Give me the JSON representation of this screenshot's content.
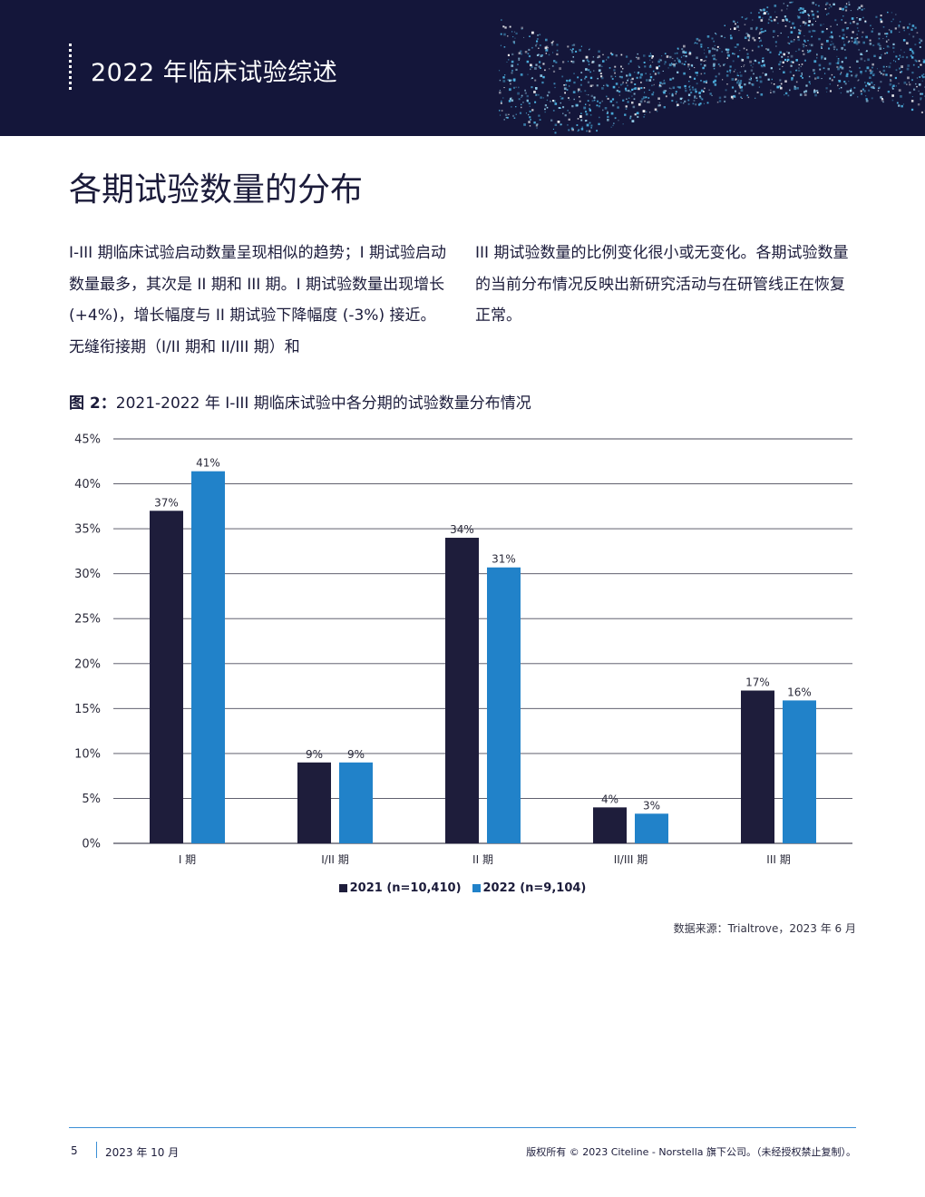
{
  "header": {
    "title": "2022 年临床试验综述"
  },
  "section": {
    "heading": "各期试验数量的分布",
    "paragraph_left": "I-III 期临床试验启动数量呈现相似的趋势；I 期试验启动数量最多，其次是 II 期和 III 期。I 期试验数量出现增长 (+4%)，增长幅度与 II 期试验下降幅度 (-3%) 接近。无缝衔接期（I/II 期和 II/III 期）和",
    "paragraph_right": "III 期试验数量的比例变化很小或无变化。各期试验数量的当前分布情况反映出新研究活动与在研管线正在恢复正常。"
  },
  "figure": {
    "label": "图 2：",
    "caption": "2021-2022 年 I-III 期临床试验中各分期的试验数量分布情况",
    "source": "数据来源：Trialtrove，2023 年 6 月"
  },
  "chart_data": {
    "type": "bar",
    "categories": [
      "I 期",
      "I/II 期",
      "II 期",
      "II/III 期",
      "III 期"
    ],
    "series": [
      {
        "name": "2021 (n=10,410)",
        "color": "#1e1d3b",
        "values": [
          37,
          9,
          34,
          4,
          17
        ],
        "labels": [
          "37%",
          "9%",
          "34%",
          "4%",
          "17%"
        ]
      },
      {
        "name": "2022 (n=9,104)",
        "color": "#2182c9",
        "values": [
          41.4,
          9,
          30.7,
          3.3,
          15.9
        ],
        "labels": [
          "41%",
          "9%",
          "31%",
          "3%",
          "16%"
        ]
      }
    ],
    "yticks": [
      "0%",
      "5%",
      "10%",
      "15%",
      "20%",
      "25%",
      "30%",
      "35%",
      "40%",
      "45%"
    ],
    "ylim": [
      0,
      45
    ],
    "grid": true,
    "legend_position": "bottom-center"
  },
  "footer": {
    "page": "5",
    "date": "2023 年 10 月",
    "copyright": "版权所有 © 2023 Citeline - Norstella 旗下公司。（未经授权禁止复制）。"
  }
}
